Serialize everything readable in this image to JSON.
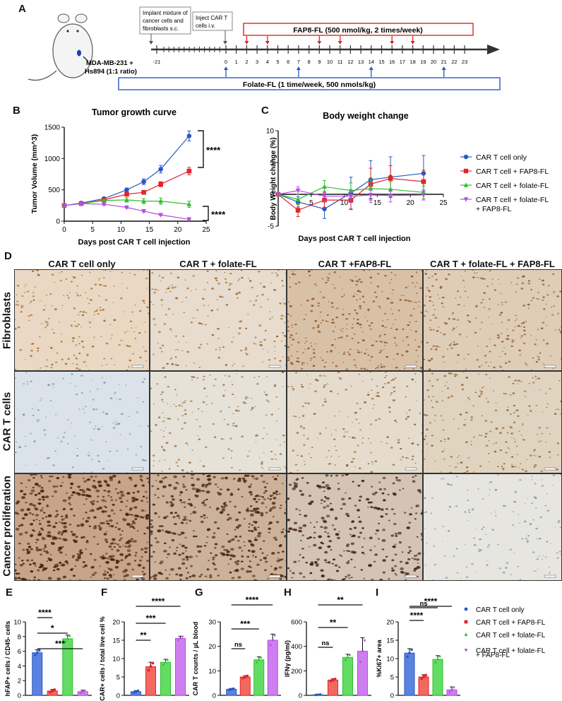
{
  "panels": {
    "A": "A",
    "B": "B",
    "C": "C",
    "D": "D",
    "E": "E",
    "F": "F",
    "G": "G",
    "H": "H",
    "I": "I"
  },
  "panel_a": {
    "implant_note": [
      "Implant mixture of",
      "cancer cells and",
      "fibroblasts s.c."
    ],
    "inject_note": [
      "Inject CAR T",
      "cells i.v."
    ],
    "fap8_label": "FAP8-FL (500 nmol/kg, 2 times/week)",
    "folate_label": "Folate-FL (1 time/week, 500 nmols/kg)",
    "mouse_label": [
      "MDA-MB-231 +",
      "Hs894 (1:1 ratio)"
    ],
    "ticks": [
      "-21",
      "0",
      "1",
      "2",
      "3",
      "4",
      "5",
      "6",
      "7",
      "8",
      "9",
      "10",
      "11",
      "12",
      "13",
      "14",
      "15",
      "16",
      "17",
      "18",
      "19",
      "20",
      "21",
      "22",
      "23"
    ],
    "fap8_days": [
      2,
      4,
      9,
      11,
      16,
      18
    ],
    "folate_days": [
      0,
      7,
      14,
      21
    ],
    "colors": {
      "fap8": "#e0262a",
      "folate": "#2a57c4"
    }
  },
  "legend_top": [
    "CAR T cell only",
    "CAR T cell + FAP8-FL",
    "CAR T cell + folate-FL",
    "CAR T cell + folate-FL",
    "+ FAP8-FL"
  ],
  "legend_bottom": [
    "CAR T cell only",
    "CAR T cell + FAP8-FL",
    "CAR T cell + folate-FL",
    "CAR T cell + folate-FL",
    "+ FAP8-FL"
  ],
  "histology": {
    "columns": [
      "CAR T cell only",
      "CAR T + folate-FL",
      "CAR T +FAP8-FL",
      "CAR T + folate-FL + FAP8-FL"
    ],
    "rows": [
      "Fibroblasts",
      "CAR T cells",
      "Cancer proliferation"
    ]
  },
  "chart_data": [
    {
      "id": "B",
      "type": "line",
      "title": "Tumor growth curve",
      "xlabel": "Days post CAR T cell injection",
      "ylabel": "Tumor Volume (mm^3)",
      "xlim": [
        0,
        25
      ],
      "ylim": [
        0,
        1500
      ],
      "xticks": [
        0,
        5,
        10,
        15,
        20,
        25
      ],
      "yticks": [
        0,
        500,
        1000,
        1500
      ],
      "series": [
        {
          "name": "CAR T cell only",
          "color": "#2a57c4",
          "marker": "circle",
          "x": [
            0,
            3,
            7,
            11,
            14,
            17,
            22
          ],
          "y": [
            250,
            290,
            360,
            500,
            630,
            830,
            1360
          ],
          "err": [
            15,
            20,
            20,
            30,
            45,
            60,
            80
          ]
        },
        {
          "name": "CAR T cell + FAP8-FL",
          "color": "#e0262a",
          "marker": "square",
          "x": [
            0,
            3,
            7,
            11,
            14,
            17,
            22
          ],
          "y": [
            250,
            280,
            340,
            430,
            460,
            590,
            800
          ],
          "err": [
            15,
            15,
            20,
            30,
            25,
            40,
            60
          ]
        },
        {
          "name": "CAR T cell + folate-FL",
          "color": "#2fbf2f",
          "marker": "triangle",
          "x": [
            0,
            3,
            7,
            11,
            14,
            17,
            22
          ],
          "y": [
            250,
            280,
            330,
            340,
            320,
            320,
            270
          ],
          "err": [
            15,
            15,
            15,
            35,
            40,
            50,
            50
          ]
        },
        {
          "name": "CAR T cell + folate-FL + FAP8-FL",
          "color": "#b44ee0",
          "marker": "tri-down",
          "x": [
            0,
            3,
            7,
            11,
            14,
            17,
            22
          ],
          "y": [
            250,
            280,
            270,
            220,
            160,
            100,
            30
          ],
          "err": [
            10,
            15,
            15,
            15,
            15,
            10,
            10
          ]
        }
      ],
      "annotations": [
        "****",
        "****"
      ]
    },
    {
      "id": "C",
      "type": "line",
      "title": "Body weight change",
      "xlabel": "Days post CAR T cell injection",
      "ylabel": "Body Weight change (%)",
      "xlim": [
        0,
        25
      ],
      "ylim": [
        -5,
        10
      ],
      "xticks": [
        5,
        10,
        15,
        20,
        25
      ],
      "yticks": [
        -5,
        0,
        5,
        10
      ],
      "series": [
        {
          "name": "CAR T cell only",
          "color": "#2a57c4",
          "marker": "circle",
          "x": [
            0,
            3,
            7,
            11,
            14,
            17,
            22
          ],
          "y": [
            0,
            -1.2,
            -2.3,
            0.2,
            2.3,
            2.7,
            3.3
          ],
          "err": [
            0.2,
            0.8,
            1.5,
            2.5,
            3,
            3.2,
            2.8
          ]
        },
        {
          "name": "CAR T cell + FAP8-FL",
          "color": "#e0262a",
          "marker": "square",
          "x": [
            0,
            3,
            7,
            11,
            14,
            17,
            22
          ],
          "y": [
            0,
            -2.5,
            -0.9,
            -0.9,
            1.6,
            2.5,
            2.0
          ],
          "err": [
            0.2,
            1,
            1.2,
            1.5,
            2.5,
            2,
            1.8
          ]
        },
        {
          "name": "CAR T cell + folate-FL",
          "color": "#2fbf2f",
          "marker": "triangle",
          "x": [
            0,
            3,
            7,
            11,
            14,
            17,
            22
          ],
          "y": [
            0,
            -0.8,
            1.2,
            0.6,
            0.9,
            0.8,
            0.3
          ],
          "err": [
            0.2,
            0.8,
            1,
            1.2,
            1.5,
            1.2,
            1
          ]
        },
        {
          "name": "CAR T cell + folate-FL + FAP8-FL",
          "color": "#b44ee0",
          "marker": "tri-down",
          "x": [
            0,
            3,
            7,
            11,
            14,
            17,
            22
          ],
          "y": [
            0,
            0.6,
            -0.3,
            -0.3,
            -0.1,
            -0.2,
            -0.1
          ],
          "err": [
            0.2,
            0.6,
            0.8,
            1,
            1.2,
            1,
            0.8
          ]
        }
      ]
    },
    {
      "id": "E",
      "type": "bar",
      "ylabel": "hFAP+ cells / CD45- cells",
      "ylim": [
        0,
        10
      ],
      "yticks": [
        0,
        2,
        4,
        6,
        8,
        10
      ],
      "categories": [
        "CAR T cell only",
        "CAR T cell + FAP8-FL",
        "CAR T cell + folate-FL",
        "CAR T cell + folate-FL + FAP8-FL"
      ],
      "values": [
        5.8,
        0.6,
        7.7,
        0.5
      ],
      "err": [
        0.4,
        0.2,
        0.5,
        0.2
      ],
      "sig": [
        {
          "a": 0,
          "b": 1,
          "label": "****"
        },
        {
          "a": 0,
          "b": 2,
          "label": "*"
        },
        {
          "a": 0,
          "b": 3,
          "label": "***"
        }
      ]
    },
    {
      "id": "F",
      "type": "bar",
      "ylabel": "CAR+ cells / total live cell %",
      "ylim": [
        0,
        20
      ],
      "yticks": [
        0,
        5,
        10,
        15,
        20
      ],
      "categories": [
        "CAR T cell only",
        "CAR T cell + FAP8-FL",
        "CAR T cell + folate-FL",
        "CAR T cell + folate-FL + FAP8-FL"
      ],
      "values": [
        1.0,
        7.8,
        9.0,
        15.5
      ],
      "err": [
        0.3,
        1.2,
        0.8,
        0.6
      ],
      "sig": [
        {
          "a": 0,
          "b": 1,
          "label": "**"
        },
        {
          "a": 0,
          "b": 2,
          "label": "***"
        },
        {
          "a": 0,
          "b": 3,
          "label": "****"
        }
      ]
    },
    {
      "id": "G",
      "type": "bar",
      "ylabel": "CAR T counts / µL blood",
      "ylim": [
        0,
        30
      ],
      "yticks": [
        0,
        10,
        20,
        30
      ],
      "categories": [
        "CAR T cell only",
        "CAR T cell + FAP8-FL",
        "CAR T cell + folate-FL",
        "CAR T cell + folate-FL + FAP8-FL"
      ],
      "values": [
        2.5,
        7.5,
        14.5,
        22.5
      ],
      "err": [
        0.3,
        0.5,
        1.2,
        2.5
      ],
      "sig": [
        {
          "a": 0,
          "b": 1,
          "label": "ns"
        },
        {
          "a": 0,
          "b": 2,
          "label": "***"
        },
        {
          "a": 0,
          "b": 3,
          "label": "****"
        }
      ]
    },
    {
      "id": "H",
      "type": "bar",
      "ylabel": "IFNγ (pg/ml)",
      "ylim": [
        0,
        600
      ],
      "yticks": [
        0,
        200,
        400,
        600
      ],
      "categories": [
        "CAR T cell only",
        "CAR T cell + FAP8-FL",
        "CAR T cell + folate-FL",
        "CAR T cell + folate-FL + FAP8-FL"
      ],
      "values": [
        5,
        125,
        310,
        360
      ],
      "err": [
        2,
        10,
        25,
        110
      ],
      "sig": [
        {
          "a": 0,
          "b": 1,
          "label": "ns"
        },
        {
          "a": 0,
          "b": 2,
          "label": "**"
        },
        {
          "a": 0,
          "b": 3,
          "label": "**"
        }
      ]
    },
    {
      "id": "I",
      "type": "bar",
      "ylabel": "%Ki67+ area",
      "ylim": [
        0,
        20
      ],
      "yticks": [
        0,
        5,
        10,
        15,
        20
      ],
      "categories": [
        "CAR T cell only",
        "CAR T cell + FAP8-FL",
        "CAR T cell + folate-FL",
        "CAR T cell + folate-FL + FAP8-FL"
      ],
      "values": [
        11.5,
        5.0,
        9.8,
        1.5
      ],
      "err": [
        1.2,
        0.6,
        1.0,
        0.8
      ],
      "sig": [
        {
          "a": 0,
          "b": 1,
          "label": "****"
        },
        {
          "a": 0,
          "b": 2,
          "label": "ns"
        },
        {
          "a": 0,
          "b": 3,
          "label": "****"
        }
      ]
    }
  ]
}
